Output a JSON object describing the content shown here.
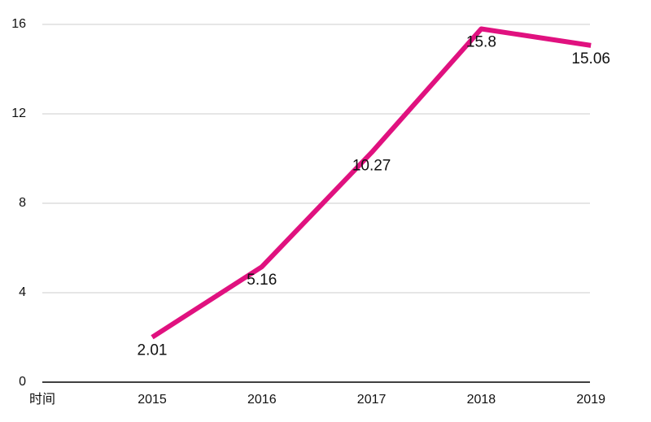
{
  "chart_data": {
    "type": "line",
    "x_label": "时间",
    "categories": [
      "2015",
      "2016",
      "2017",
      "2018",
      "2019"
    ],
    "series": [
      {
        "name": null,
        "color": "#e0117f",
        "values": [
          2.01,
          5.16,
          10.27,
          15.8,
          15.06
        ]
      }
    ],
    "ylim": [
      0,
      16
    ],
    "yticks": [
      0,
      4,
      8,
      12,
      16
    ],
    "grid": true
  }
}
